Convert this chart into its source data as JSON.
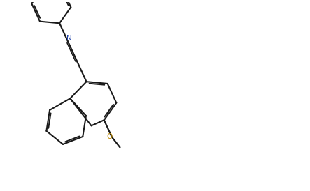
{
  "bg": "#ffffff",
  "bond_color": "#1a1a1a",
  "N_color": "#2244aa",
  "O_color": "#bb8800",
  "S_color": "#aa9900",
  "lw": 1.6,
  "lw2": 1.1
}
